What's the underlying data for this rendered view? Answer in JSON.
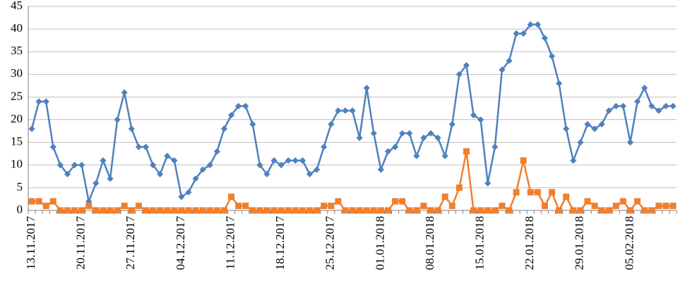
{
  "chart_data": {
    "type": "line",
    "title": "",
    "xlabel": "",
    "ylabel": "",
    "ylim": [
      0,
      45
    ],
    "yticks": [
      0,
      5,
      10,
      15,
      20,
      25,
      30,
      35,
      40,
      45
    ],
    "grid": true,
    "legend": "none",
    "x": [
      "13.11.2017",
      "14.11.2017",
      "15.11.2017",
      "16.11.2017",
      "17.11.2017",
      "18.11.2017",
      "19.11.2017",
      "20.11.2017",
      "21.11.2017",
      "22.11.2017",
      "23.11.2017",
      "24.11.2017",
      "25.11.2017",
      "26.11.2017",
      "27.11.2017",
      "28.11.2017",
      "29.11.2017",
      "30.11.2017",
      "01.12.2017",
      "02.12.2017",
      "03.12.2017",
      "04.12.2017",
      "05.12.2017",
      "06.12.2017",
      "07.12.2017",
      "08.12.2017",
      "09.12.2017",
      "10.12.2017",
      "11.12.2017",
      "12.12.2017",
      "13.12.2017",
      "14.12.2017",
      "15.12.2017",
      "16.12.2017",
      "17.12.2017",
      "18.12.2017",
      "19.12.2017",
      "20.12.2017",
      "21.12.2017",
      "22.12.2017",
      "23.12.2017",
      "24.12.2017",
      "25.12.2017",
      "26.12.2017",
      "27.12.2017",
      "28.12.2017",
      "29.12.2017",
      "30.12.2017",
      "31.12.2017",
      "01.01.2018",
      "02.01.2018",
      "03.01.2018",
      "04.01.2018",
      "05.01.2018",
      "06.01.2018",
      "07.01.2018",
      "08.01.2018",
      "09.01.2018",
      "10.01.2018",
      "11.01.2018",
      "12.01.2018",
      "13.01.2018",
      "14.01.2018",
      "15.01.2018",
      "16.01.2018",
      "17.01.2018",
      "18.01.2018",
      "19.01.2018",
      "20.01.2018",
      "21.01.2018",
      "22.01.2018",
      "23.01.2018",
      "24.01.2018",
      "25.01.2018",
      "26.01.2018",
      "27.01.2018",
      "28.01.2018",
      "29.01.2018",
      "30.01.2018",
      "31.01.2018",
      "01.02.2018",
      "02.02.2018",
      "03.02.2018",
      "04.02.2018",
      "05.02.2018",
      "06.02.2018",
      "07.02.2018",
      "08.02.2018",
      "09.02.2018",
      "10.02.2018",
      "11.02.2018"
    ],
    "xtick_labels": [
      "13.11.2017",
      "20.11.2017",
      "27.11.2017",
      "04.12.2017",
      "11.12.2017",
      "18.12.2017",
      "25.12.2017",
      "01.01.2018",
      "08.01.2018",
      "15.01.2018",
      "22.01.2018",
      "29.01.2018",
      "05.02.2018"
    ],
    "series": [
      {
        "color": "#4f81bd",
        "marker": "diamond",
        "values": [
          18,
          24,
          24,
          14,
          10,
          8,
          10,
          10,
          2,
          6,
          11,
          7,
          20,
          26,
          18,
          14,
          14,
          10,
          8,
          12,
          11,
          3,
          4,
          7,
          9,
          10,
          13,
          18,
          21,
          23,
          23,
          19,
          10,
          8,
          11,
          10,
          11,
          11,
          11,
          8,
          9,
          14,
          19,
          22,
          22,
          22,
          16,
          27,
          17,
          9,
          13,
          14,
          17,
          17,
          12,
          16,
          17,
          16,
          12,
          19,
          30,
          32,
          21,
          20,
          6,
          14,
          31,
          33,
          39,
          39,
          41,
          41,
          38,
          34,
          28,
          18,
          11,
          15,
          19,
          18,
          19,
          22,
          23,
          23,
          15,
          24,
          27,
          23,
          22,
          23,
          23
        ]
      },
      {
        "color": "#f07f2e",
        "marker": "square",
        "values": [
          2,
          2,
          1,
          2,
          0,
          0,
          0,
          0,
          1,
          0,
          0,
          0,
          0,
          1,
          0,
          1,
          0,
          0,
          0,
          0,
          0,
          0,
          0,
          0,
          0,
          0,
          0,
          0,
          3,
          1,
          1,
          0,
          0,
          0,
          0,
          0,
          0,
          0,
          0,
          0,
          0,
          1,
          1,
          2,
          0,
          0,
          0,
          0,
          0,
          0,
          0,
          2,
          2,
          0,
          0,
          1,
          0,
          0,
          3,
          1,
          5,
          13,
          0,
          0,
          0,
          0,
          1,
          0,
          4,
          11,
          4,
          4,
          1,
          4,
          0,
          3,
          0,
          0,
          2,
          1,
          0,
          0,
          1,
          2,
          0,
          2,
          0,
          0,
          1,
          1,
          1
        ]
      }
    ]
  }
}
